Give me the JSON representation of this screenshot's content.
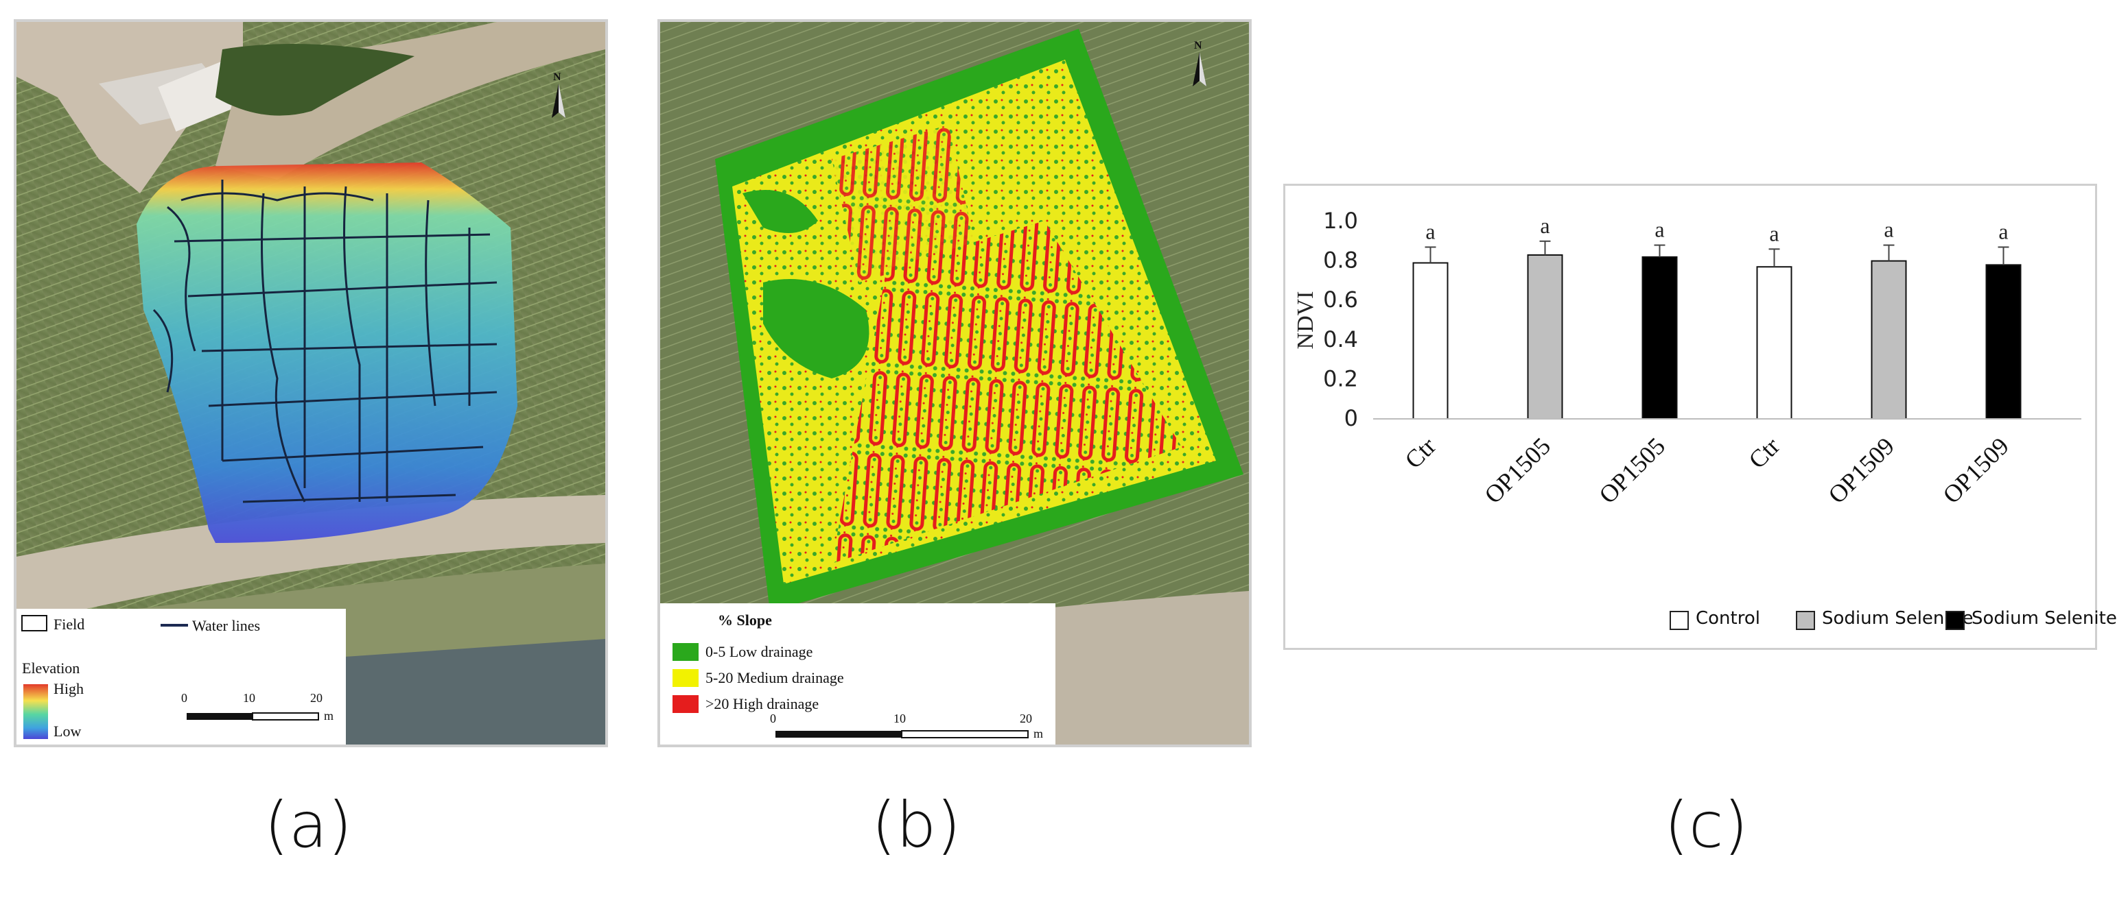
{
  "panel_a": {
    "label": "(a)",
    "legend": {
      "field": "Field",
      "water_lines": "Water lines",
      "elevation": "Elevation",
      "high": "High",
      "low": "Low",
      "scale_ticks": [
        "0",
        "10",
        "20"
      ],
      "scale_unit": "m"
    },
    "north": "N"
  },
  "panel_b": {
    "label": "(b)",
    "legend": {
      "title": "% Slope",
      "items": [
        {
          "text": "0-5 Low drainage",
          "color": "#2aa81c"
        },
        {
          "text": "5-20 Medium drainage",
          "color": "#f2f200"
        },
        {
          "text": ">20 High drainage",
          "color": "#e51d1d"
        }
      ],
      "scale_ticks": [
        "0",
        "10",
        "20"
      ],
      "scale_unit": "m"
    },
    "north": "N"
  },
  "panel_c": {
    "label": "(c)"
  },
  "chart_data": {
    "type": "bar",
    "categories": [
      "Ctr",
      "OP1505",
      "OP1505",
      "Ctr",
      "OP1509",
      "OP1509"
    ],
    "values": [
      0.79,
      0.83,
      0.82,
      0.77,
      0.8,
      0.78
    ],
    "errors": [
      0.08,
      0.07,
      0.06,
      0.09,
      0.08,
      0.09
    ],
    "significance": [
      "a",
      "a",
      "a",
      "a",
      "a",
      "a"
    ],
    "bar_groups": [
      "Control",
      "Sodium Selenate",
      "Sodium Selenite",
      "Control",
      "Sodium Selenate",
      "Sodium Selenite"
    ],
    "legend": [
      {
        "name": "Control",
        "color": "#ffffff"
      },
      {
        "name": "Sodium Selenate",
        "color": "#bfbfbf"
      },
      {
        "name": "Sodium Selenite",
        "color": "#000000"
      }
    ],
    "ylabel": "NDVI",
    "xlabel": "",
    "ylim": [
      0,
      1.0
    ],
    "yticks": [
      "0",
      "0.2",
      "0.4",
      "0.6",
      "0.8",
      "1.0"
    ],
    "legend_position": "bottom-right",
    "grid": false
  }
}
